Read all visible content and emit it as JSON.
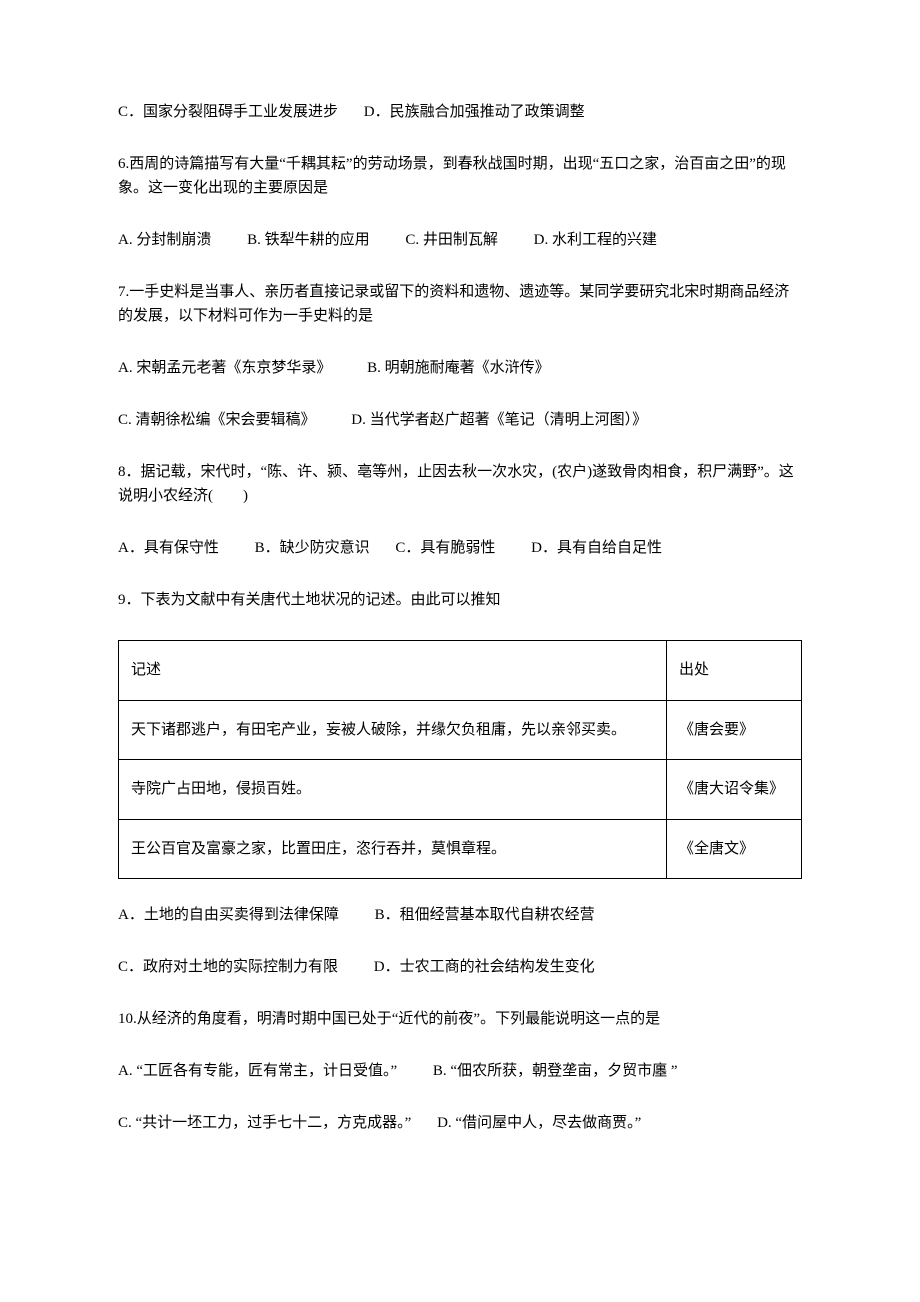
{
  "q5_tail": {
    "C": "C．国家分裂阻碍手工业发展进步",
    "D": "D．民族融合加强推动了政策调整"
  },
  "q6": {
    "stem": "6.西周的诗篇描写有大量“千耦其耘”的劳动场景，到春秋战国时期，出现“五口之家，治百亩之田”的现象。这一变化出现的主要原因是",
    "A": "A. 分封制崩溃",
    "B": "B. 铁犁牛耕的应用",
    "C": "C. 井田制瓦解",
    "D": "D. 水利工程的兴建"
  },
  "q7": {
    "stem": "7.一手史料是当事人、亲历者直接记录或留下的资料和遗物、遗迹等。某同学要研究北宋时期商品经济的发展，以下材料可作为一手史料的是",
    "A": "A. 宋朝孟元老著《东京梦华录》",
    "B": "B. 明朝施耐庵著《水浒传》",
    "C": "C. 清朝徐松编《宋会要辑稿》",
    "D": "D. 当代学者赵广超著《笔记（清明上河图）》"
  },
  "q8": {
    "stem": "8．据记载，宋代时，“陈、许、颍、亳等州，止因去秋一次水灾，(农户)遂致骨肉相食，积尸满野”。这说明小农经济(　　)",
    "A": "A．具有保守性",
    "B": "B．缺少防灾意识",
    "C": "C．具有脆弱性",
    "D": "D．具有自给自足性"
  },
  "q9": {
    "stem": "9．下表为文献中有关唐代土地状况的记述。由此可以推知",
    "table": {
      "header": {
        "col1": "记述",
        "col2": "出处"
      },
      "rows": [
        {
          "desc": "天下诸郡逃户，有田宅产业，妄被人破除，并缘欠负租庸，先以亲邻买卖。",
          "src": "《唐会要》"
        },
        {
          "desc": "寺院广占田地，侵损百姓。",
          "src": "《唐大诏令集》"
        },
        {
          "desc": "王公百官及富豪之家，比置田庄，恣行吞并，莫惧章程。",
          "src": "《全唐文》"
        }
      ]
    },
    "A": "A．土地的自由买卖得到法律保障",
    "B": "B．租佃经营基本取代自耕农经营",
    "C": "C．政府对土地的实际控制力有限",
    "D": "D．士农工商的社会结构发生变化"
  },
  "q10": {
    "stem": "10.从经济的角度看，明清时期中国已处于“近代的前夜”。下列最能说明这一点的是",
    "A": "A. “工匠各有专能，匠有常主，计日受值。”",
    "B": "B. “佃农所获，朝登垄亩，夕贸市廛  ”",
    "C": "C. “共计一坯工力，过手七十二，方克成器。”",
    "D": "D. “借问屋中人，尽去做商贾。”"
  }
}
